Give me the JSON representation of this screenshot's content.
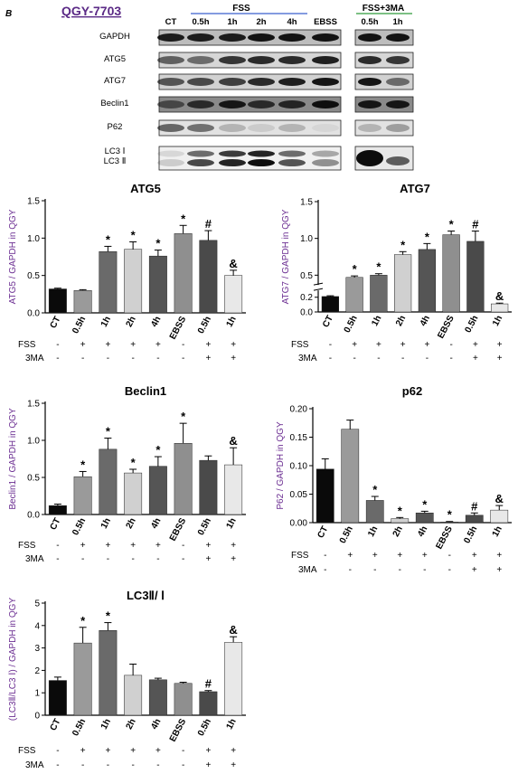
{
  "panel_letter": "B",
  "blot": {
    "cell_line": "QGY-7703",
    "group_fss": "FSS",
    "group_fss3ma": "FSS+3MA",
    "lanes_main": [
      "CT",
      "0.5h",
      "1h",
      "2h",
      "4h",
      "EBSS"
    ],
    "lanes_3ma": [
      "0.5h",
      "1h"
    ],
    "proteins": [
      "GAPDH",
      "ATG5",
      "ATG7",
      "Beclin1",
      "P62",
      "LC3 Ⅰ",
      "LC3 Ⅱ"
    ]
  },
  "conditions": {
    "row1_label": "FSS",
    "row2_label": "3MA",
    "fss": [
      "-",
      "+",
      "+",
      "+",
      "+",
      "-",
      "+",
      "+"
    ],
    "ma": [
      "-",
      "-",
      "-",
      "-",
      "-",
      "-",
      "+",
      "+"
    ]
  },
  "chart_data": [
    {
      "type": "bar",
      "title": "ATG5",
      "ylabel": "ATG5 / GAPDH in QGY",
      "categories": [
        "CT",
        "0.5h",
        "1h",
        "2h",
        "4h",
        "EBSS",
        "0.5h",
        "1h"
      ],
      "values": [
        0.32,
        0.3,
        0.82,
        0.85,
        0.76,
        1.06,
        0.97,
        0.5
      ],
      "errors": [
        0.01,
        0.01,
        0.07,
        0.1,
        0.08,
        0.11,
        0.13,
        0.07
      ],
      "marks": [
        "",
        "",
        "*",
        "*",
        "*",
        "*",
        "#",
        "&"
      ],
      "ylim": [
        0,
        1.5
      ],
      "yticks": [
        "0.0",
        "0.5",
        "1.0",
        "1.5"
      ],
      "yticks_val": [
        0,
        0.5,
        1.0,
        1.5
      ]
    },
    {
      "type": "bar",
      "title": "ATG7",
      "ylabel": "ATG7 / GAPDH in QGY",
      "categories": [
        "CT",
        "0.5h",
        "1h",
        "2h",
        "4h",
        "EBSS",
        "0.5h",
        "1h"
      ],
      "values": [
        0.21,
        0.47,
        0.5,
        0.78,
        0.85,
        1.05,
        0.96,
        0.11
      ],
      "errors": [
        0.01,
        0.02,
        0.02,
        0.04,
        0.08,
        0.05,
        0.14,
        0.01
      ],
      "marks": [
        "",
        "*",
        "*",
        "*",
        "*",
        "*",
        "#",
        "&"
      ],
      "ylim": [
        0,
        1.5
      ],
      "yticks": [
        "0.0",
        "0.2",
        "0.5",
        "1.0",
        "1.5"
      ],
      "yticks_val": [
        0,
        0.2,
        0.5,
        1.0,
        1.5
      ]
    },
    {
      "type": "bar",
      "title": "Beclin1",
      "ylabel": "Beclin1 / GAPDH in QGY",
      "categories": [
        "CT",
        "0.5h",
        "1h",
        "2h",
        "4h",
        "EBSS",
        "0.5h",
        "1h"
      ],
      "values": [
        0.12,
        0.51,
        0.88,
        0.56,
        0.65,
        0.96,
        0.73,
        0.67
      ],
      "errors": [
        0.02,
        0.07,
        0.15,
        0.05,
        0.13,
        0.27,
        0.06,
        0.23
      ],
      "marks": [
        "",
        "*",
        "*",
        "*",
        "*",
        "*",
        "",
        "&"
      ],
      "ylim": [
        0,
        1.5
      ],
      "yticks": [
        "0.0",
        "0.5",
        "1.0",
        "1.5"
      ],
      "yticks_val": [
        0,
        0.5,
        1.0,
        1.5
      ]
    },
    {
      "type": "bar",
      "title": "p62",
      "ylabel": "P62 / GAPDH in QGY",
      "categories": [
        "CT",
        "0.5h",
        "1h",
        "2h",
        "4h",
        "EBSS",
        "0.5h",
        "1h"
      ],
      "values": [
        0.094,
        0.164,
        0.039,
        0.007,
        0.017,
        0.001,
        0.013,
        0.022
      ],
      "errors": [
        0.018,
        0.016,
        0.007,
        0.002,
        0.003,
        0.001,
        0.004,
        0.008
      ],
      "marks": [
        "",
        "",
        "*",
        "*",
        "*",
        "*",
        "#",
        "&"
      ],
      "ylim": [
        0,
        0.2
      ],
      "yticks": [
        "0.00",
        "0.05",
        "0.10",
        "0.15",
        "0.20"
      ],
      "yticks_val": [
        0,
        0.05,
        0.1,
        0.15,
        0.2
      ]
    },
    {
      "type": "bar",
      "title": "LC3Ⅱ/ Ⅰ",
      "ylabel": "(LC3Ⅱ/LC3 Ⅰ) / GAPDH in QGY",
      "categories": [
        "CT",
        "0.5h",
        "1h",
        "2h",
        "4h",
        "EBSS",
        "0.5h",
        "1h"
      ],
      "values": [
        1.55,
        3.22,
        3.78,
        1.78,
        1.58,
        1.42,
        1.05,
        3.25
      ],
      "errors": [
        0.15,
        0.7,
        0.35,
        0.5,
        0.07,
        0.05,
        0.05,
        0.25
      ],
      "marks": [
        "",
        "*",
        "*",
        "",
        "",
        "",
        "#",
        "&"
      ],
      "ylim": [
        0,
        5
      ],
      "yticks": [
        "0",
        "1",
        "2",
        "3",
        "4",
        "5"
      ],
      "yticks_val": [
        0,
        1,
        2,
        3,
        4,
        5
      ]
    }
  ],
  "colors": {
    "bars": [
      "#0a0a0a",
      "#9a9a9a",
      "#6a6a6a",
      "#d0d0d0",
      "#555555",
      "#8f8f8f",
      "#4a4a4a",
      "#e8e8e8"
    ],
    "ylabel": "#6a2c91",
    "cell_line": "#5b2a86",
    "fss_line": "#3a5fcd",
    "fss3ma_line": "#2e9a3a"
  }
}
